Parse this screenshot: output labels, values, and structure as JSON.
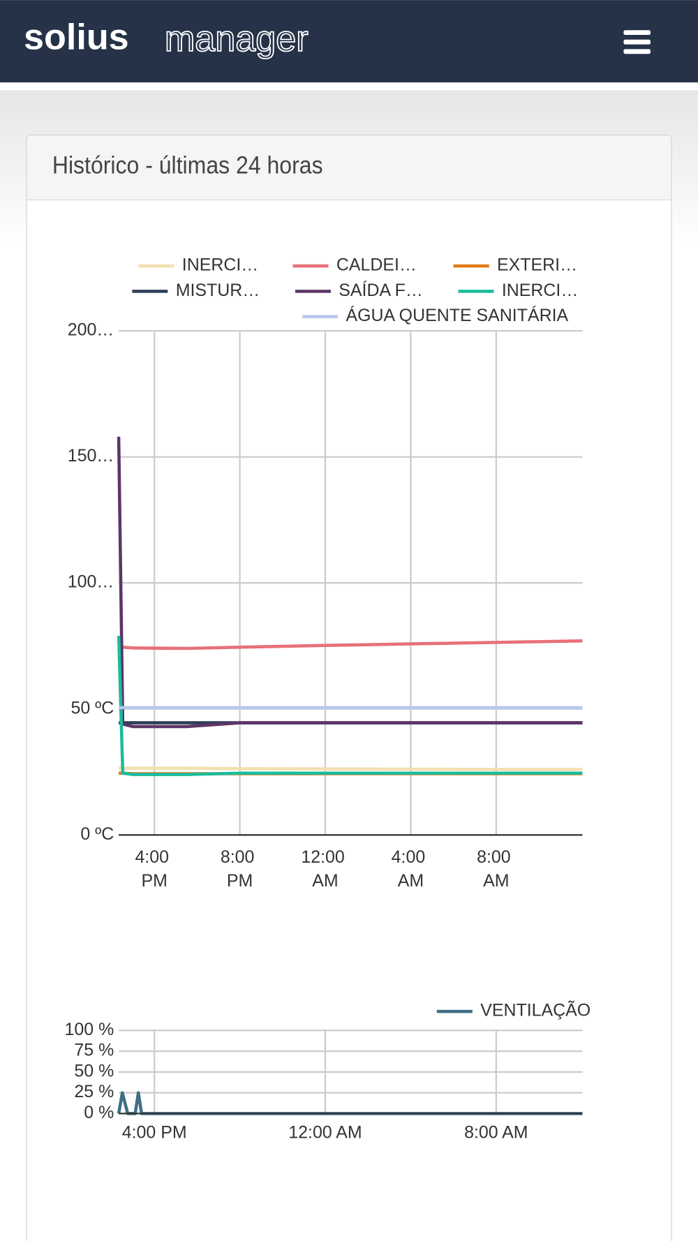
{
  "header": {
    "brand_bold": "solius",
    "brand_light": "manager"
  },
  "panel": {
    "title": "Histórico - últimas 24 horas"
  },
  "chart_data": [
    {
      "type": "line",
      "x": [
        14.33,
        14.52,
        15.0,
        17.5,
        20,
        24,
        28,
        32,
        36.04
      ],
      "xlim": [
        14.33,
        36.04
      ],
      "xticks": [
        {
          "value": 16,
          "label": "4:00 PM"
        },
        {
          "value": 20,
          "label": "8:00 PM"
        },
        {
          "value": 24,
          "label": "12:00 AM"
        },
        {
          "value": 28,
          "label": "4:00 AM"
        },
        {
          "value": 32,
          "label": "8:00 AM"
        }
      ],
      "ylim": [
        0,
        200
      ],
      "yticks": [
        {
          "value": 0,
          "label": "0 ºC"
        },
        {
          "value": 50,
          "label": "50 ºC"
        },
        {
          "value": 100,
          "label": "100…"
        },
        {
          "value": 150,
          "label": "150…"
        },
        {
          "value": 200,
          "label": "200…"
        }
      ],
      "grid": true,
      "series": [
        {
          "name": "INERCI…",
          "color": "#f2dfb0",
          "values": [
            26.5,
            26.5,
            26.5,
            26.5,
            26.3,
            26.2,
            26.1,
            26,
            26
          ]
        },
        {
          "name": "CALDEI…",
          "color": "#e8707a",
          "values": [
            74.5,
            74.5,
            74.2,
            74,
            74.5,
            75.2,
            75.8,
            76.4,
            77
          ]
        },
        {
          "name": "EXTERI…",
          "color": "#e07b1a",
          "values": [
            24.5,
            24.5,
            24.3,
            24.3,
            24.3,
            24.3,
            24.3,
            24.3,
            24.3
          ]
        },
        {
          "name": "MISTUR…",
          "color": "#2c3e57",
          "values": [
            44.5,
            44.5,
            44.5,
            44.5,
            44.5,
            44.5,
            44.5,
            44.5,
            44.5
          ]
        },
        {
          "name": "SAÍDA F…",
          "color": "#5c3566",
          "values": [
            158,
            44,
            43,
            43,
            44.5,
            44.5,
            44.5,
            44.5,
            44.5
          ]
        },
        {
          "name": "INERCI…",
          "color": "#1abc9c",
          "values": [
            79,
            24.5,
            24,
            24,
            24.5,
            24.5,
            24.5,
            24.5,
            24.5
          ]
        },
        {
          "name": "ÁGUA QUENTE SANITÁRIA",
          "color": "#b8c8ee",
          "values": [
            50.5,
            50.5,
            50.5,
            50.5,
            50.5,
            50.5,
            50.5,
            50.5,
            50.5
          ]
        }
      ]
    },
    {
      "type": "line",
      "x": [
        14.33,
        14.5,
        14.75,
        15.1,
        15.25,
        15.4,
        36.04
      ],
      "xlim": [
        14.33,
        36.04
      ],
      "xticks": [
        {
          "value": 16,
          "label": "4:00 PM"
        },
        {
          "value": 24,
          "label": "12:00 AM"
        },
        {
          "value": 32,
          "label": "8:00 AM"
        }
      ],
      "ylim": [
        0,
        100
      ],
      "yticks": [
        {
          "value": 0,
          "label": "0 %"
        },
        {
          "value": 25,
          "label": "25 %"
        },
        {
          "value": 50,
          "label": "50 %"
        },
        {
          "value": 75,
          "label": "75 %"
        },
        {
          "value": 100,
          "label": "100 %"
        }
      ],
      "grid": true,
      "series": [
        {
          "name": "VENTILAÇÃO",
          "color": "#3d6e84",
          "values": [
            0,
            25,
            0,
            0,
            25,
            0,
            0
          ]
        }
      ]
    }
  ]
}
